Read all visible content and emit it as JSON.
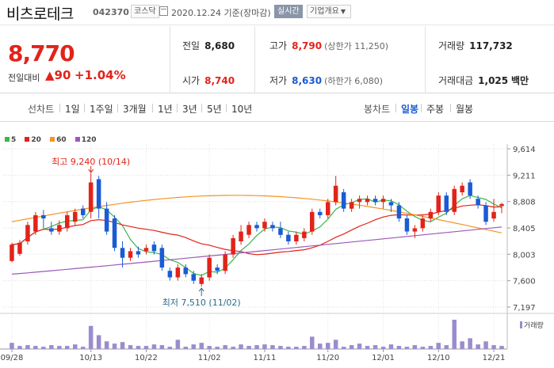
{
  "header": {
    "name": "비츠로테크",
    "code": "042370",
    "market": "코스닥",
    "date": "2020.12.24",
    "date_suffix": "기준(장마감)",
    "realtime": "실시간",
    "company_overview": "기업개요"
  },
  "price": {
    "current": "8,770",
    "change_label": "전일대비",
    "change_arrow": "▲",
    "change_value": "90",
    "change_percent": "+1.04%"
  },
  "stats": {
    "prev_close_label": "전일",
    "prev_close": "8,680",
    "high_label": "고가",
    "high": "8,790",
    "upper_limit": "(상한가 11,250)",
    "volume_label": "거래량",
    "volume": "117,732",
    "open_label": "시가",
    "open": "8,740",
    "low_label": "저가",
    "low": "8,630",
    "lower_limit": "(하한가 6,080)",
    "amount_label": "거래대금",
    "amount": "1,025",
    "amount_unit": "백만"
  },
  "toolbar": {
    "line_label": "선차트",
    "line_periods": [
      "1일",
      "1주일",
      "3개월",
      "1년",
      "3년",
      "5년",
      "10년"
    ],
    "candle_label": "봉차트",
    "candle_periods": [
      "일봉",
      "주봉",
      "월봉"
    ],
    "active": "일봉"
  },
  "legend": [
    {
      "name": "5",
      "color": "#3cb54a"
    },
    {
      "name": "20",
      "color": "#e2231a"
    },
    {
      "name": "60",
      "color": "#f39423"
    },
    {
      "name": "120",
      "color": "#9b59b6"
    }
  ],
  "annotations": {
    "max": "최고 9,240 (10/14)",
    "min": "최저 7,510 (11/02)"
  },
  "colors": {
    "up": "#e2231a",
    "down": "#1a5bd6",
    "volume": "#9b8ccf"
  },
  "chart_data": {
    "type": "candlestick",
    "y_ticks": [
      "9,614",
      "9,211",
      "8,808",
      "8,405",
      "8,003",
      "7,600",
      "7,197"
    ],
    "ylim": [
      7197,
      9614
    ],
    "x_ticks": [
      "09/28",
      "10/13",
      "10/22",
      "11/02",
      "11/11",
      "11/20",
      "12/01",
      "12/10",
      "12/21"
    ],
    "volume_label": "거래량",
    "candles": [
      {
        "o": 7900,
        "c": 8150,
        "h": 8180,
        "l": 7880
      },
      {
        "o": 8010,
        "c": 8180,
        "h": 8220,
        "l": 7980
      },
      {
        "o": 8200,
        "c": 8450,
        "h": 8500,
        "l": 8150
      },
      {
        "o": 8350,
        "c": 8600,
        "h": 8650,
        "l": 8300
      },
      {
        "o": 8600,
        "c": 8550,
        "h": 8680,
        "l": 8400
      },
      {
        "o": 8400,
        "c": 8350,
        "h": 8500,
        "l": 8300
      },
      {
        "o": 8350,
        "c": 8450,
        "h": 8520,
        "l": 8300
      },
      {
        "o": 8400,
        "c": 8600,
        "h": 8650,
        "l": 8350
      },
      {
        "o": 8500,
        "c": 8650,
        "h": 8700,
        "l": 8450
      },
      {
        "o": 8700,
        "c": 8600,
        "h": 8750,
        "l": 8550
      },
      {
        "o": 8650,
        "c": 9100,
        "h": 9240,
        "l": 8550
      },
      {
        "o": 9150,
        "c": 8700,
        "h": 9200,
        "l": 8550
      },
      {
        "o": 8700,
        "c": 8350,
        "h": 8800,
        "l": 8300
      },
      {
        "o": 8550,
        "c": 8100,
        "h": 8600,
        "l": 8050
      },
      {
        "o": 8100,
        "c": 7950,
        "h": 8200,
        "l": 7800
      },
      {
        "o": 7950,
        "c": 8050,
        "h": 8100,
        "l": 7900
      },
      {
        "o": 8050,
        "c": 8000,
        "h": 8120,
        "l": 7950
      },
      {
        "o": 8050,
        "c": 8100,
        "h": 8150,
        "l": 8000
      },
      {
        "o": 8150,
        "c": 8050,
        "h": 8200,
        "l": 8000
      },
      {
        "o": 8100,
        "c": 7800,
        "h": 8150,
        "l": 7750
      },
      {
        "o": 7750,
        "c": 7650,
        "h": 7800,
        "l": 7600
      },
      {
        "o": 7650,
        "c": 7800,
        "h": 7850,
        "l": 7600
      },
      {
        "o": 7800,
        "c": 7700,
        "h": 7850,
        "l": 7650
      },
      {
        "o": 7700,
        "c": 7600,
        "h": 7750,
        "l": 7550
      },
      {
        "o": 7550,
        "c": 7650,
        "h": 7700,
        "l": 7510
      },
      {
        "o": 7650,
        "c": 7950,
        "h": 8000,
        "l": 7600
      },
      {
        "o": 7800,
        "c": 7750,
        "h": 7850,
        "l": 7700
      },
      {
        "o": 7750,
        "c": 8000,
        "h": 8050,
        "l": 7700
      },
      {
        "o": 8000,
        "c": 8250,
        "h": 8300,
        "l": 7950
      },
      {
        "o": 8200,
        "c": 8350,
        "h": 8450,
        "l": 8150
      },
      {
        "o": 8300,
        "c": 8450,
        "h": 8500,
        "l": 8250
      },
      {
        "o": 8450,
        "c": 8400,
        "h": 8500,
        "l": 8350
      },
      {
        "o": 8400,
        "c": 8500,
        "h": 8550,
        "l": 8350
      },
      {
        "o": 8450,
        "c": 8400,
        "h": 8500,
        "l": 8350
      },
      {
        "o": 8400,
        "c": 8300,
        "h": 8500,
        "l": 8250
      },
      {
        "o": 8300,
        "c": 8200,
        "h": 8350,
        "l": 8150
      },
      {
        "o": 8200,
        "c": 8300,
        "h": 8350,
        "l": 8150
      },
      {
        "o": 8250,
        "c": 8350,
        "h": 8400,
        "l": 8200
      },
      {
        "o": 8350,
        "c": 8650,
        "h": 8700,
        "l": 8300
      },
      {
        "o": 8650,
        "c": 8600,
        "h": 8700,
        "l": 8550
      },
      {
        "o": 8600,
        "c": 8800,
        "h": 8850,
        "l": 8550
      },
      {
        "o": 8800,
        "c": 9050,
        "h": 9200,
        "l": 8750
      },
      {
        "o": 8950,
        "c": 8700,
        "h": 9000,
        "l": 8650
      },
      {
        "o": 8700,
        "c": 8800,
        "h": 8850,
        "l": 8650
      },
      {
        "o": 8800,
        "c": 8850,
        "h": 8900,
        "l": 8700
      },
      {
        "o": 8800,
        "c": 8850,
        "h": 8900,
        "l": 8750
      },
      {
        "o": 8850,
        "c": 8800,
        "h": 8900,
        "l": 8750
      },
      {
        "o": 8800,
        "c": 8850,
        "h": 8900,
        "l": 8700
      },
      {
        "o": 8800,
        "c": 8750,
        "h": 8850,
        "l": 8650
      },
      {
        "o": 8750,
        "c": 8550,
        "h": 8800,
        "l": 8500
      },
      {
        "o": 8550,
        "c": 8350,
        "h": 8600,
        "l": 8300
      },
      {
        "o": 8350,
        "c": 8400,
        "h": 8450,
        "l": 8250
      },
      {
        "o": 8400,
        "c": 8550,
        "h": 8600,
        "l": 8350
      },
      {
        "o": 8550,
        "c": 8650,
        "h": 8700,
        "l": 8500
      },
      {
        "o": 8650,
        "c": 8900,
        "h": 8950,
        "l": 8600
      },
      {
        "o": 8900,
        "c": 8650,
        "h": 8950,
        "l": 8600
      },
      {
        "o": 8650,
        "c": 9000,
        "h": 9050,
        "l": 8600
      },
      {
        "o": 8950,
        "c": 9050,
        "h": 9100,
        "l": 8900
      },
      {
        "o": 9100,
        "c": 8900,
        "h": 9150,
        "l": 8850
      },
      {
        "o": 8850,
        "c": 8750,
        "h": 8900,
        "l": 8700
      },
      {
        "o": 8750,
        "c": 8500,
        "h": 8800,
        "l": 8450
      },
      {
        "o": 8550,
        "c": 8650,
        "h": 8850,
        "l": 8500
      },
      {
        "o": 8740,
        "c": 8770,
        "h": 8790,
        "l": 8630
      }
    ],
    "volume": [
      8,
      4,
      5,
      4,
      3,
      5,
      4,
      4,
      6,
      3,
      30,
      18,
      10,
      7,
      9,
      5,
      4,
      4,
      6,
      5,
      3,
      12,
      3,
      6,
      8,
      4,
      3,
      5,
      3,
      6,
      4,
      5,
      6,
      5,
      4,
      3,
      3,
      4,
      16,
      7,
      8,
      12,
      3,
      5,
      7,
      4,
      5,
      3,
      6,
      4,
      3,
      5,
      3,
      4,
      8,
      5,
      38,
      10,
      14,
      6,
      10,
      5,
      4
    ]
  }
}
